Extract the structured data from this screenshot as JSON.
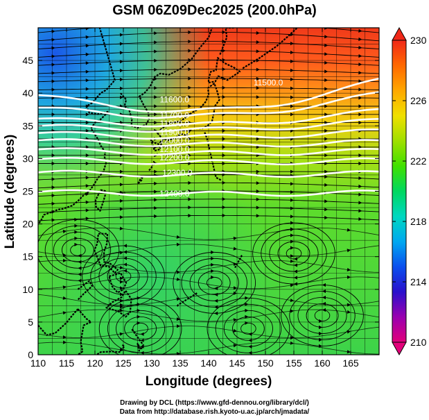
{
  "title": "GSM 06Z09Dec2025 (200.0hPa)",
  "x_axis": {
    "label": "Longitude (degrees)",
    "range": [
      110,
      170
    ],
    "ticks": [
      "110",
      "115",
      "120",
      "125",
      "130",
      "135",
      "140",
      "145",
      "150",
      "155",
      "160",
      "165"
    ]
  },
  "y_axis": {
    "label": "Latitude  (degrees)",
    "range": [
      0,
      50
    ],
    "ticks": [
      "0",
      "5",
      "10",
      "15",
      "20",
      "25",
      "30",
      "35",
      "40",
      "45"
    ]
  },
  "colorbar": {
    "range": [
      210,
      230
    ],
    "labels": [
      "230",
      "226",
      "222",
      "218",
      "214",
      "210"
    ],
    "stops": [
      "#e2007a",
      "#9a00b0",
      "#2a10cc",
      "#0a4fee",
      "#00a8f0",
      "#00d8c0",
      "#00d860",
      "#40e000",
      "#a0e000",
      "#f0e000",
      "#ffa800",
      "#ff6800",
      "#f02818"
    ]
  },
  "contour_labels": [
    {
      "text": "11600.0",
      "lon": 134.0,
      "lat": 38.6
    },
    {
      "text": "11700.0",
      "lon": 134.0,
      "lat": 36.2
    },
    {
      "text": "11800.0",
      "lon": 134.0,
      "lat": 34.9
    },
    {
      "text": "11900.0",
      "lon": 134.0,
      "lat": 33.6
    },
    {
      "text": "12000.0",
      "lon": 134.0,
      "lat": 32.3
    },
    {
      "text": "12100.0",
      "lon": 134.0,
      "lat": 31.0
    },
    {
      "text": "12200.0",
      "lon": 134.0,
      "lat": 29.7
    },
    {
      "text": "12300.0",
      "lon": 134.5,
      "lat": 27.4
    },
    {
      "text": "12400.0",
      "lon": 134.0,
      "lat": 24.2
    },
    {
      "text": "11500.0",
      "lon": 150.5,
      "lat": 41.2
    }
  ],
  "footer": {
    "line1": "Drawing by DCL (https://www.gfd-dennou.org/library/dcl/)",
    "line2": "Data from http://database.rish.kyoto-u.ac.jp/arch/jmadata/"
  }
}
